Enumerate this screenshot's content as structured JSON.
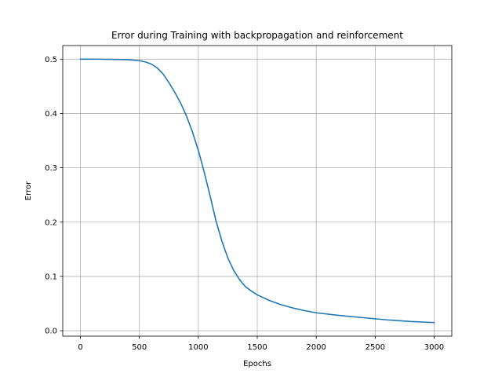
{
  "chart_data": {
    "type": "line",
    "title": "Error during Training with backpropagation and reinforcement",
    "xlabel": "Epochs",
    "ylabel": "Error",
    "xlim": [
      -150,
      3150
    ],
    "ylim": [
      -0.01,
      0.525
    ],
    "xticks": [
      0,
      500,
      1000,
      1500,
      2000,
      2500,
      3000
    ],
    "yticks": [
      0.0,
      0.1,
      0.2,
      0.3,
      0.4,
      0.5
    ],
    "xtick_labels": [
      "0",
      "500",
      "1000",
      "1500",
      "2000",
      "2500",
      "3000"
    ],
    "ytick_labels": [
      "0.0",
      "0.1",
      "0.2",
      "0.3",
      "0.4",
      "0.5"
    ],
    "grid": true,
    "series": [
      {
        "color": "#1f77b4",
        "x": [
          0,
          100,
          200,
          300,
          400,
          500,
          550,
          600,
          650,
          700,
          750,
          800,
          850,
          900,
          950,
          1000,
          1050,
          1100,
          1150,
          1200,
          1250,
          1300,
          1350,
          1400,
          1450,
          1500,
          1600,
          1700,
          1800,
          1900,
          2000,
          2200,
          2400,
          2600,
          2800,
          3000
        ],
        "y": [
          0.5,
          0.5,
          0.4998,
          0.4995,
          0.499,
          0.497,
          0.495,
          0.491,
          0.484,
          0.473,
          0.457,
          0.439,
          0.419,
          0.395,
          0.366,
          0.332,
          0.292,
          0.248,
          0.202,
          0.165,
          0.134,
          0.111,
          0.094,
          0.081,
          0.073,
          0.066,
          0.056,
          0.048,
          0.042,
          0.037,
          0.033,
          0.028,
          0.024,
          0.02,
          0.017,
          0.015
        ]
      }
    ]
  }
}
